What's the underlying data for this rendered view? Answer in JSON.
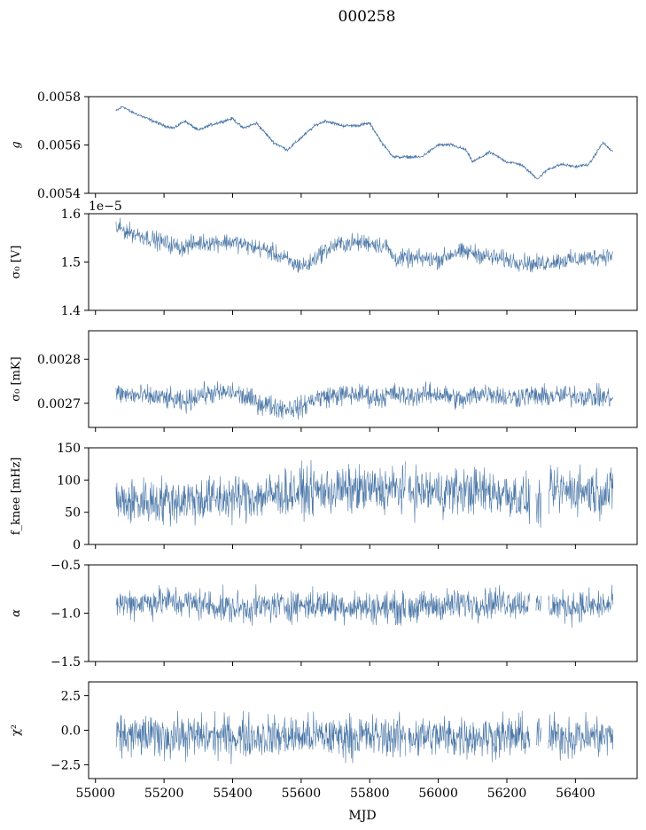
{
  "figure": {
    "title": "000258",
    "xlabel": "MJD"
  },
  "colors": {
    "series": "#4c78a8",
    "axis": "#000000",
    "background": "#ffffff"
  },
  "chart_data": [
    {
      "type": "line",
      "ylabel": "g",
      "ylabel_style": "italic",
      "ylim": [
        0.0054,
        0.0058
      ],
      "yticks": [
        "0.0054",
        "0.0056",
        "0.0058"
      ],
      "ytick_values": [
        0.0054,
        0.0056,
        0.0058
      ],
      "noise": 3e-06,
      "series": [
        {
          "x": [
            55060,
            55080,
            55100,
            55150,
            55200,
            55230,
            55260,
            55300,
            55330,
            55400,
            55430,
            55470,
            55520,
            55560,
            55600,
            55640,
            55670,
            55720,
            55760,
            55800,
            55840,
            55870,
            55900,
            55950,
            56000,
            56040,
            56080,
            56100,
            56150,
            56200,
            56240,
            56290,
            56320,
            56360,
            56400,
            56440,
            56480,
            56510
          ],
          "y": [
            0.00574,
            0.00576,
            0.00574,
            0.00571,
            0.00568,
            0.00567,
            0.0057,
            0.00566,
            0.00568,
            0.00571,
            0.00567,
            0.00569,
            0.00561,
            0.00558,
            0.00563,
            0.00568,
            0.0057,
            0.00568,
            0.00568,
            0.00569,
            0.0056,
            0.00555,
            0.00555,
            0.00555,
            0.0056,
            0.0056,
            0.00558,
            0.00553,
            0.00557,
            0.00553,
            0.00552,
            0.00546,
            0.0055,
            0.00552,
            0.00551,
            0.00552,
            0.00561,
            0.00557
          ]
        }
      ],
      "xlim": [
        54980,
        56580
      ]
    },
    {
      "type": "line",
      "ylabel": "σ₀ [V]",
      "offset_label": "1e−5",
      "ylim": [
        1.4,
        1.6
      ],
      "yticks": [
        "1.4",
        "1.5",
        "1.6"
      ],
      "ytick_values": [
        1.4,
        1.5,
        1.6
      ],
      "noise": 0.009,
      "series": [
        {
          "x": [
            55060,
            55100,
            55200,
            55250,
            55300,
            55350,
            55400,
            55450,
            55500,
            55550,
            55580,
            55620,
            55650,
            55700,
            55750,
            55800,
            55850,
            55870,
            55900,
            55950,
            56000,
            56050,
            56100,
            56150,
            56200,
            56250,
            56280,
            56300,
            56320,
            56350,
            56400,
            56450,
            56510
          ],
          "y": [
            1.572,
            1.562,
            1.54,
            1.53,
            1.54,
            1.541,
            1.542,
            1.532,
            1.525,
            1.508,
            1.495,
            1.493,
            1.515,
            1.535,
            1.54,
            1.54,
            1.532,
            1.508,
            1.507,
            1.507,
            1.505,
            1.52,
            1.52,
            1.51,
            1.505,
            1.5,
            1.495,
            1.497,
            1.5,
            1.503,
            1.505,
            1.51,
            1.515
          ]
        }
      ],
      "xlim": [
        54980,
        56580
      ]
    },
    {
      "type": "line",
      "ylabel": "σ₀ [mK]",
      "ylim": [
        0.002645,
        0.002865
      ],
      "yticks": [
        "0.0027",
        "0.0028"
      ],
      "ytick_values": [
        0.0027,
        0.0028
      ],
      "noise": 1.2e-05,
      "series": [
        {
          "x": [
            55060,
            55150,
            55200,
            55260,
            55300,
            55400,
            55480,
            55540,
            55600,
            55640,
            55700,
            55780,
            55820,
            55870,
            55900,
            55950,
            56000,
            56080,
            56100,
            56150,
            56200,
            56260,
            56300,
            56400,
            56510
          ],
          "y": [
            0.002722,
            0.002715,
            0.002712,
            0.0027,
            0.00272,
            0.002725,
            0.0027,
            0.00269,
            0.00269,
            0.002712,
            0.002718,
            0.00272,
            0.002712,
            0.002722,
            0.002715,
            0.00272,
            0.002722,
            0.002705,
            0.00272,
            0.002725,
            0.002712,
            0.002718,
            0.002715,
            0.002718,
            0.002712
          ]
        }
      ],
      "xlim": [
        54980,
        56580
      ]
    },
    {
      "type": "line",
      "ylabel": "f_knee [mHz]",
      "ylim": [
        0,
        150
      ],
      "yticks": [
        "0",
        "50",
        "100",
        "150"
      ],
      "ytick_values": [
        0,
        50,
        100,
        150
      ],
      "noise": 18,
      "gaps": [
        [
          55905,
          55912
        ],
        [
          56268,
          56285
        ],
        [
          56300,
          56320
        ]
      ],
      "series": [
        {
          "x": [
            55060,
            55200,
            55300,
            55400,
            55500,
            55600,
            55700,
            55800,
            55900,
            55950,
            56000,
            56100,
            56200,
            56250,
            56290,
            56340,
            56400,
            56510
          ],
          "y": [
            65,
            68,
            70,
            72,
            76,
            82,
            84,
            85,
            86,
            82,
            82,
            83,
            80,
            70,
            60,
            82,
            85,
            80
          ]
        }
      ],
      "xlim": [
        54980,
        56580
      ]
    },
    {
      "type": "line",
      "ylabel": "α",
      "ylabel_style": "italic",
      "ylim": [
        -1.5,
        -0.5
      ],
      "yticks": [
        "−1.5",
        "−1.0",
        "−0.5"
      ],
      "ytick_values": [
        -1.5,
        -1.0,
        -0.5
      ],
      "noise": 0.08,
      "gaps": [
        [
          55905,
          55912
        ],
        [
          56268,
          56285
        ],
        [
          56300,
          56320
        ]
      ],
      "series": [
        {
          "x": [
            55060,
            55200,
            55300,
            55400,
            55500,
            55600,
            55700,
            55800,
            55900,
            56000,
            56100,
            56200,
            56300,
            56400,
            56510
          ],
          "y": [
            -0.9,
            -0.88,
            -0.9,
            -0.95,
            -0.93,
            -0.91,
            -0.92,
            -0.94,
            -0.95,
            -0.92,
            -0.9,
            -0.88,
            -0.92,
            -0.93,
            -0.92
          ]
        }
      ],
      "xlim": [
        54980,
        56580
      ]
    },
    {
      "type": "line",
      "ylabel": "χ²",
      "ylim": [
        -3.5,
        3.5
      ],
      "yticks": [
        "−2.5",
        "0.0",
        "2.5"
      ],
      "ytick_values": [
        -2.5,
        0,
        2.5
      ],
      "noise": 0.75,
      "gaps": [
        [
          55905,
          55912
        ],
        [
          56268,
          56285
        ],
        [
          56300,
          56320
        ]
      ],
      "series": [
        {
          "x": [
            55060,
            56510
          ],
          "y": [
            -0.45,
            -0.45
          ]
        }
      ],
      "xlim": [
        54980,
        56580
      ],
      "xticks": [
        "55000",
        "55200",
        "55400",
        "55600",
        "55800",
        "56000",
        "56200",
        "56400"
      ],
      "xtick_values": [
        55000,
        55200,
        55400,
        55600,
        55800,
        56000,
        56200,
        56400
      ]
    }
  ]
}
